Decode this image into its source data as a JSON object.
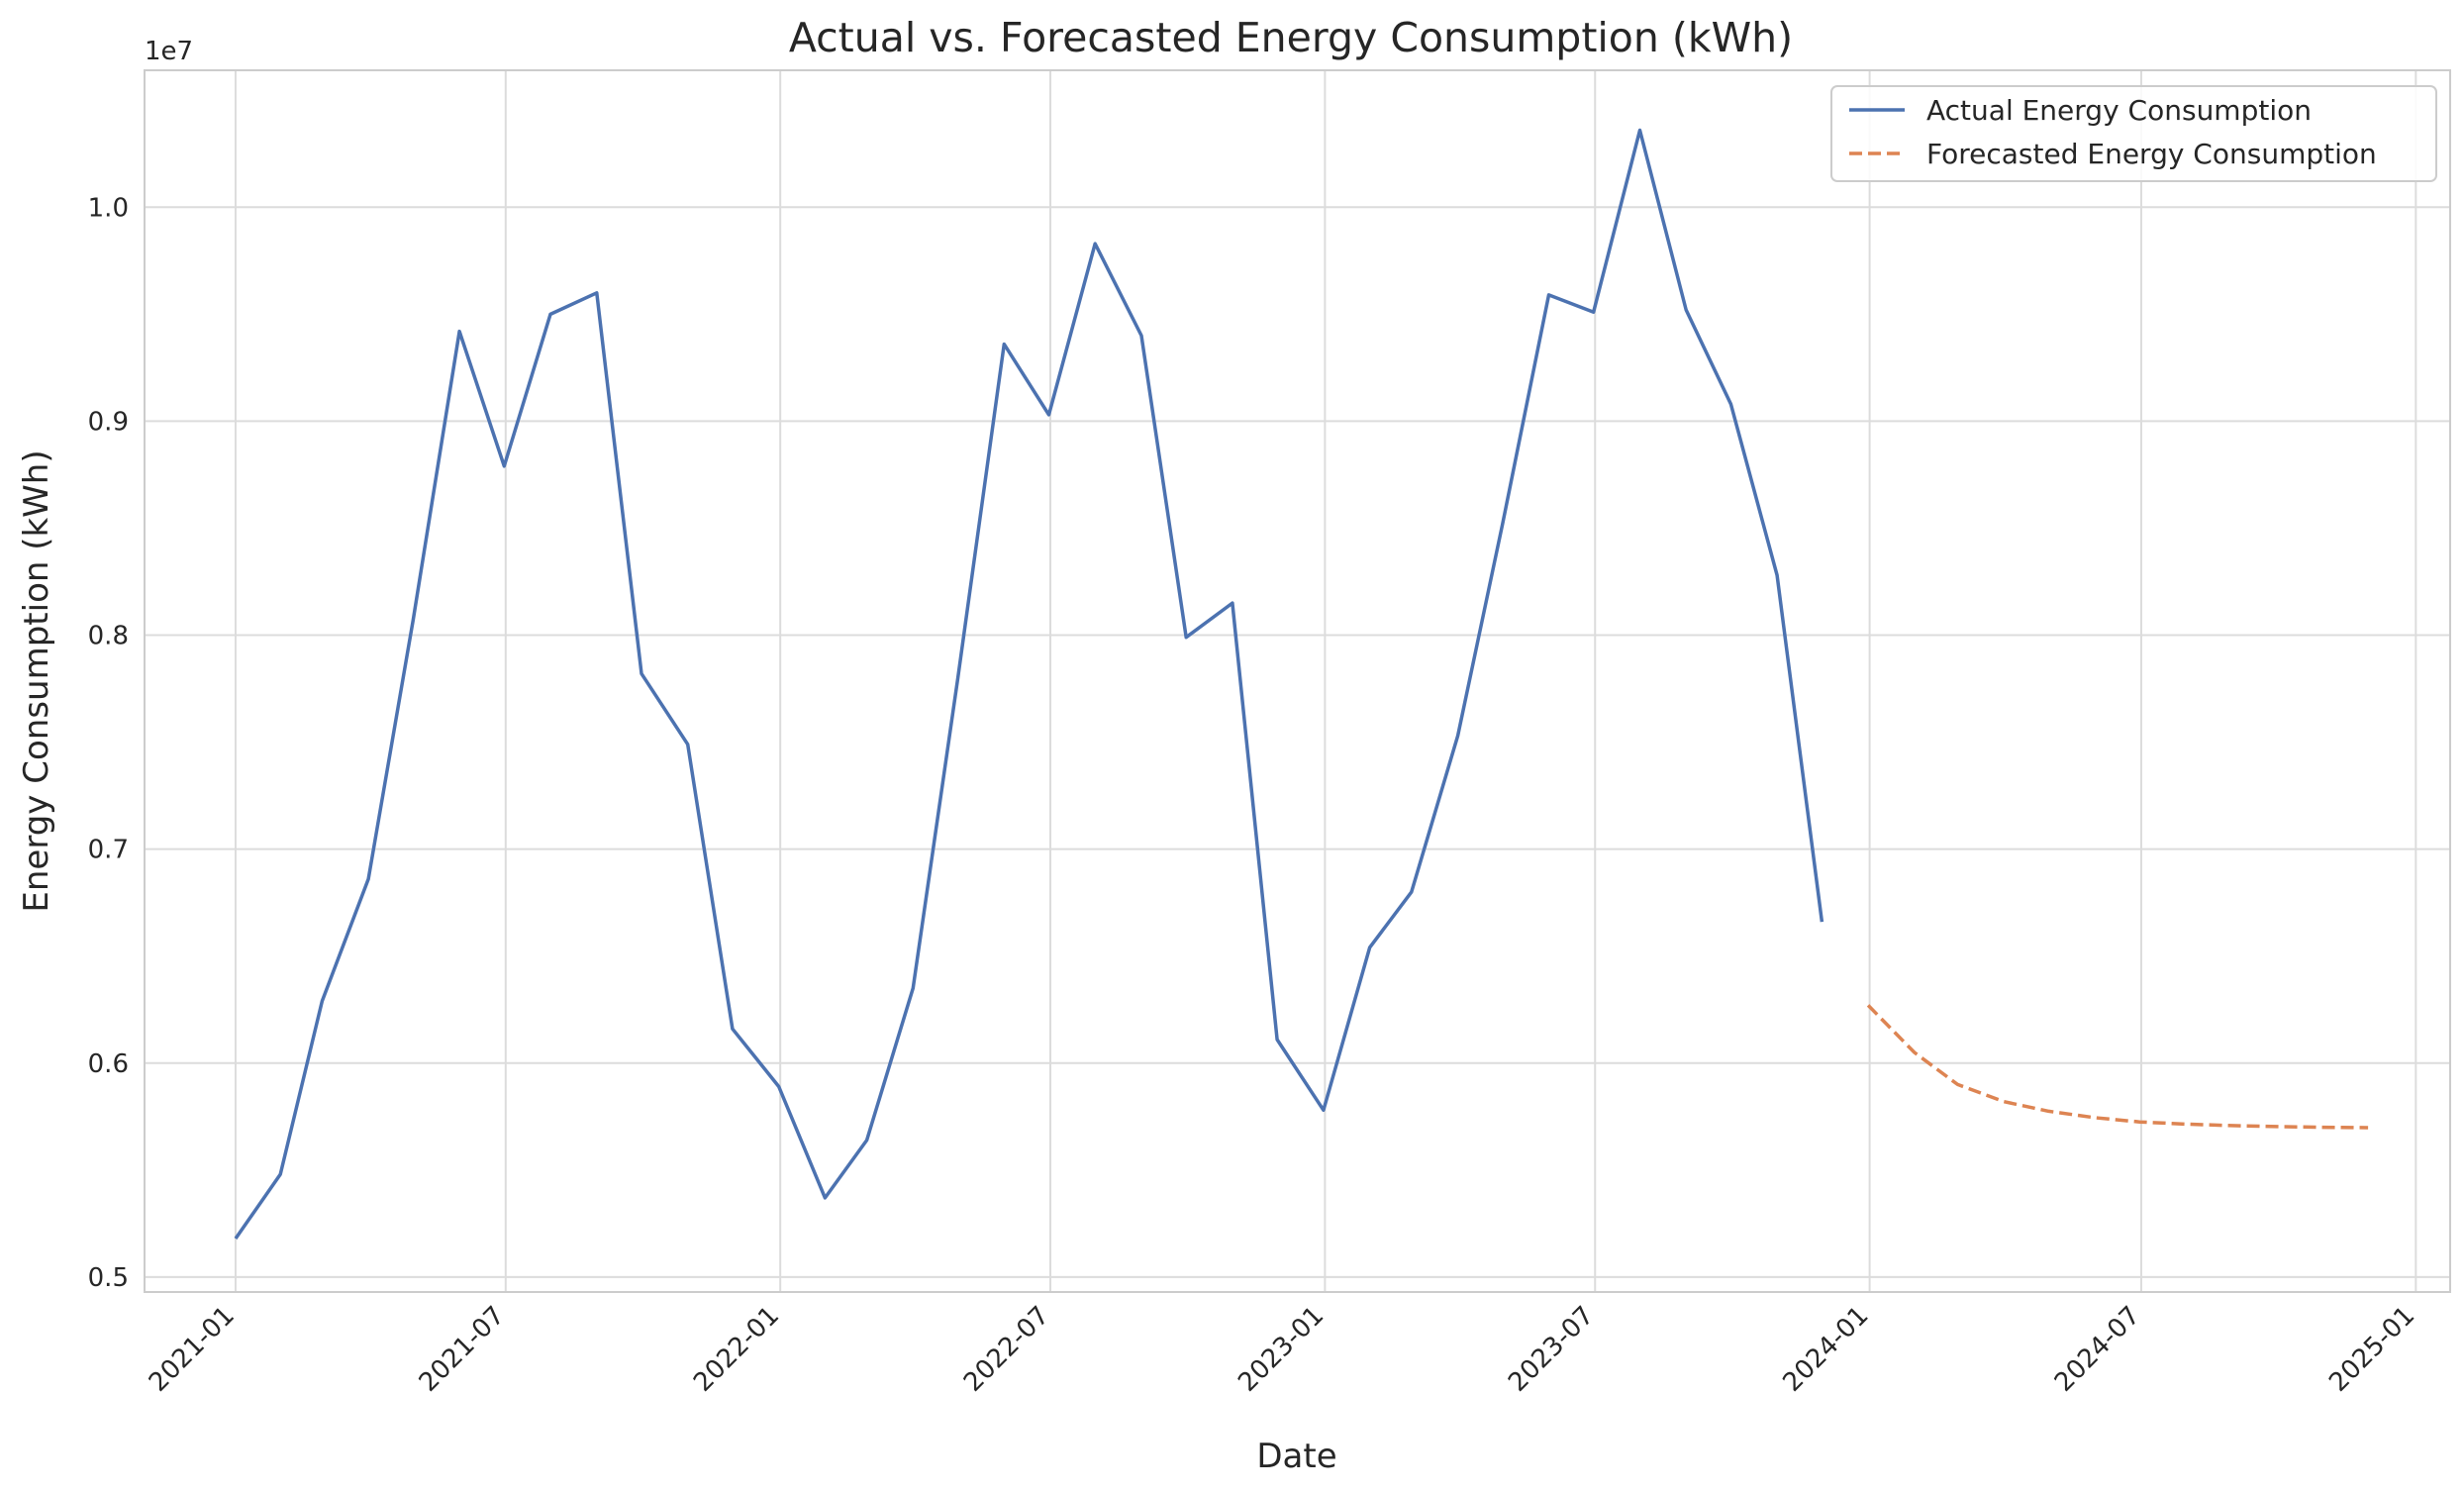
{
  "chart_data": {
    "type": "line",
    "title": "Actual vs. Forecasted Energy Consumption (kWh)",
    "xlabel": "Date",
    "ylabel": "Energy Consumption (kWh)",
    "y_offset_label": "1e7",
    "xlim": [
      "2020-11-01",
      "2025-01-24"
    ],
    "ylim": [
      4930000,
      10640000
    ],
    "x_ticks": [
      "2021-01",
      "2021-07",
      "2022-01",
      "2022-07",
      "2023-01",
      "2023-07",
      "2024-01",
      "2024-07",
      "2025-01"
    ],
    "y_ticks": [
      "0.5",
      "0.6",
      "0.7",
      "0.8",
      "0.9",
      "1.0"
    ],
    "grid": true,
    "legend_position": "top-right",
    "series": [
      {
        "name": "Actual Energy Consumption",
        "color": "#4c72b0",
        "style": "solid",
        "x": [
          "2021-01-01",
          "2021-01-31",
          "2021-02-28",
          "2021-03-31",
          "2021-04-30",
          "2021-05-31",
          "2021-06-30",
          "2021-07-31",
          "2021-08-31",
          "2021-09-30",
          "2021-10-31",
          "2021-11-30",
          "2021-12-31",
          "2022-01-31",
          "2022-02-28",
          "2022-03-31",
          "2022-04-30",
          "2022-05-31",
          "2022-06-30",
          "2022-07-31",
          "2022-08-31",
          "2022-09-30",
          "2022-10-31",
          "2022-11-30",
          "2022-12-31",
          "2023-01-31",
          "2023-02-28",
          "2023-03-31",
          "2023-04-30",
          "2023-05-31",
          "2023-06-30",
          "2023-07-31",
          "2023-08-31",
          "2023-09-30",
          "2023-10-31",
          "2023-11-30"
        ],
        "values": [
          5180000,
          5480000,
          6290000,
          6860000,
          8070000,
          9420000,
          8790000,
          9500000,
          9600000,
          7820000,
          7490000,
          6160000,
          5890000,
          5370000,
          5640000,
          6350000,
          7800000,
          9360000,
          9030000,
          9830000,
          9400000,
          7990000,
          8150000,
          6110000,
          5780000,
          6540000,
          6800000,
          7530000,
          8520000,
          9590000,
          9510000,
          10360000,
          9520000,
          9080000,
          8280000,
          6660000
        ]
      },
      {
        "name": "Forecasted Energy Consumption",
        "color": "#dd8452",
        "style": "dashed",
        "x": [
          "2023-12-31",
          "2024-01-31",
          "2024-02-29",
          "2024-03-31",
          "2024-04-30",
          "2024-05-31",
          "2024-06-30",
          "2024-07-31",
          "2024-08-31",
          "2024-09-30",
          "2024-10-31",
          "2024-11-30"
        ],
        "values": [
          6270000,
          6050000,
          5900000,
          5820000,
          5775000,
          5745000,
          5725000,
          5715000,
          5708000,
          5703000,
          5700000,
          5698000
        ]
      }
    ]
  }
}
